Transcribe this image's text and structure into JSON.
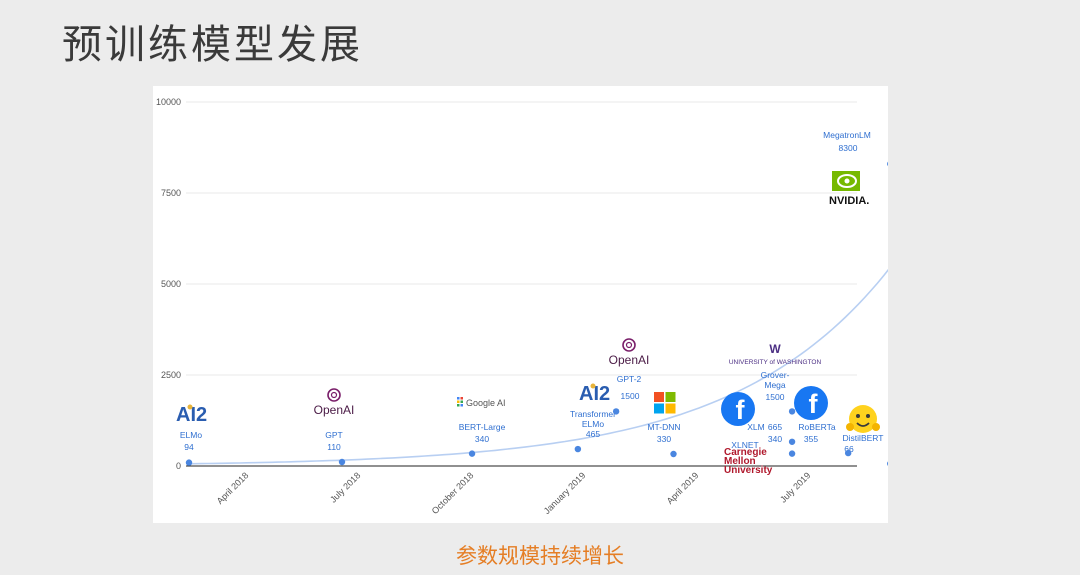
{
  "slide": {
    "title": "预训练模型发展",
    "caption": "参数规模持续增长"
  },
  "colors": {
    "point": "#4a86e0",
    "label": "#2f6fd0",
    "trend": "#b8cff2",
    "caption": "#e57e25"
  },
  "logos": {
    "ai2": "AI2",
    "openai": "OpenAI",
    "google": "Google AI",
    "microsoft": "microsoft-logo",
    "facebook": "facebook-logo",
    "uw": "UNIVERSITY of WASHINGTON",
    "cmu": [
      "Carnegie",
      "Mellon",
      "University"
    ],
    "nvidia": "NVIDIA.",
    "huggingface": "huggingface-logo"
  },
  "chart_data": {
    "type": "scatter",
    "ylim": [
      0,
      10000
    ],
    "y_ticks": [
      0,
      2500,
      5000,
      7500,
      10000
    ],
    "y_tick_labels": [
      "0",
      "2500",
      "5000",
      "7500",
      "10000"
    ],
    "x_ticks": [
      "April 2018",
      "July 2018",
      "October 2018",
      "January 2019",
      "April 2019",
      "July 2019"
    ],
    "grid": true,
    "trend_line": true,
    "points": [
      {
        "name": "ELMo",
        "value": 94,
        "value_label": "94",
        "xi": 0.0
      },
      {
        "name": "GPT",
        "value": 110,
        "value_label": "110",
        "xi": 1.2
      },
      {
        "name": "BERT-Large",
        "value": 340,
        "value_label": "340",
        "xi": 2.22
      },
      {
        "name": "Transformer ELMo",
        "value": 465,
        "value_label": "465",
        "xi": 3.05
      },
      {
        "name": "GPT-2",
        "value": 1500,
        "value_label": "1500",
        "xi": 3.35
      },
      {
        "name": "MT-DNN",
        "value": 330,
        "value_label": "330",
        "xi": 3.8
      },
      {
        "name": "XLNET",
        "value": 340,
        "value_label": "340",
        "xi": 4.73
      },
      {
        "name": "XLM",
        "value": 665,
        "value_label": "665",
        "xi": 4.73
      },
      {
        "name": "Grover-Mega",
        "value": 1500,
        "value_label": "1500",
        "xi": 4.73
      },
      {
        "name": "RoBERTa",
        "value": 355,
        "value_label": "355",
        "xi": 5.17
      },
      {
        "name": "DistilBERT",
        "value": 66,
        "value_label": "66",
        "xi": 5.5
      },
      {
        "name": "MegatronLM",
        "value": 8300,
        "value_label": "8300",
        "xi": 5.5
      }
    ]
  }
}
